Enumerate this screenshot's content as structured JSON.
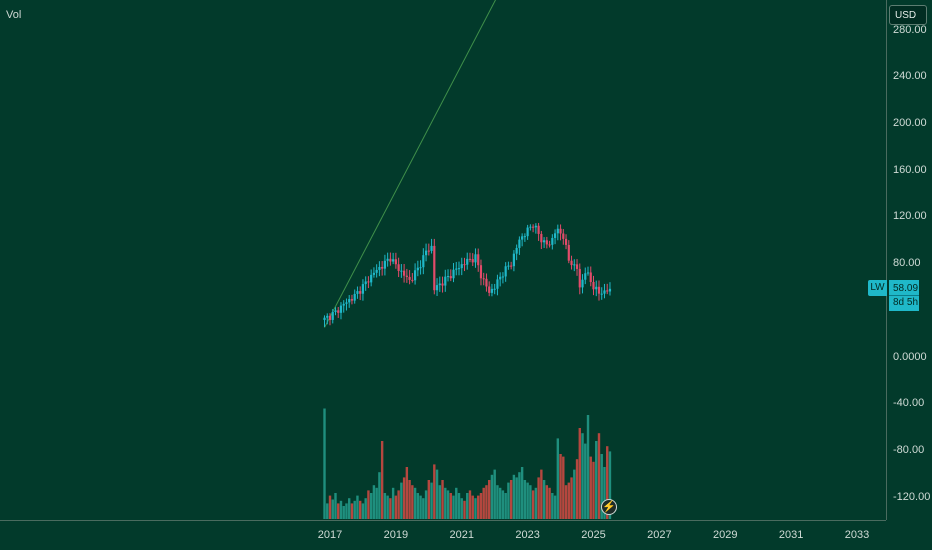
{
  "legend": {
    "label": "Vol"
  },
  "currency": "USD",
  "symbol": "LW",
  "last_price": "58.09",
  "countdown": "8d 5h",
  "y_ticks": [
    "280.00",
    "240.00",
    "200.00",
    "160.00",
    "120.00",
    "80.00",
    "0.0000",
    "-40.00",
    "-80.00",
    "-120.00"
  ],
  "x_ticks": [
    "2017",
    "2019",
    "2021",
    "2023",
    "2025",
    "2027",
    "2029",
    "2031",
    "2033"
  ],
  "colors": {
    "background": "#023a2b",
    "up": "#1fb8c9",
    "down": "#e24b6a",
    "vol_up": "#1f8f7e",
    "vol_down": "#b5473f",
    "trendline": "#3f8f4a"
  },
  "chart_data": {
    "type": "candlestick",
    "interval": "1M",
    "price_scale": {
      "ylim": [
        -150,
        295
      ]
    },
    "x_range": [
      "2016-09",
      "2033-10"
    ],
    "trendline": {
      "from": [
        "2016-11",
        25
      ],
      "to": [
        "2022-09",
        340
      ]
    },
    "price_series": {
      "name": "LW",
      "anchors": [
        [
          "2016-11",
          32
        ],
        [
          "2017-03",
          38
        ],
        [
          "2017-06",
          45
        ],
        [
          "2017-10",
          52
        ],
        [
          "2018-02",
          63
        ],
        [
          "2018-05",
          72
        ],
        [
          "2018-09",
          80
        ],
        [
          "2018-11",
          85
        ],
        [
          "2019-01",
          78
        ],
        [
          "2019-04",
          70
        ],
        [
          "2019-06",
          65
        ],
        [
          "2019-09",
          75
        ],
        [
          "2019-12",
          90
        ],
        [
          "2020-02",
          94
        ],
        [
          "2020-03",
          58
        ],
        [
          "2020-05",
          62
        ],
        [
          "2020-08",
          68
        ],
        [
          "2020-11",
          75
        ],
        [
          "2021-03",
          82
        ],
        [
          "2021-06",
          85
        ],
        [
          "2021-08",
          70
        ],
        [
          "2021-11",
          55
        ],
        [
          "2022-01",
          60
        ],
        [
          "2022-04",
          72
        ],
        [
          "2022-07",
          80
        ],
        [
          "2022-10",
          100
        ],
        [
          "2023-01",
          108
        ],
        [
          "2023-03",
          114
        ],
        [
          "2023-06",
          100
        ],
        [
          "2023-09",
          95
        ],
        [
          "2023-11",
          108
        ],
        [
          "2024-02",
          104
        ],
        [
          "2024-04",
          82
        ],
        [
          "2024-07",
          76
        ],
        [
          "2024-08",
          58
        ],
        [
          "2024-10",
          74
        ],
        [
          "2024-12",
          64
        ],
        [
          "2025-03",
          54
        ],
        [
          "2025-07",
          58
        ]
      ],
      "last": 58.09
    },
    "volume_series": {
      "name": "Vol",
      "note": "relative monthly bar heights, 0-100",
      "values": [
        85,
        12,
        18,
        15,
        20,
        12,
        14,
        10,
        12,
        16,
        12,
        14,
        18,
        14,
        12,
        16,
        22,
        20,
        26,
        24,
        36,
        60,
        20,
        18,
        16,
        24,
        18,
        22,
        28,
        32,
        40,
        30,
        26,
        24,
        20,
        18,
        16,
        22,
        30,
        28,
        42,
        38,
        26,
        30,
        24,
        22,
        20,
        18,
        24,
        20,
        16,
        14,
        20,
        22,
        18,
        16,
        18,
        20,
        24,
        26,
        30,
        34,
        38,
        26,
        24,
        22,
        20,
        28,
        30,
        34,
        32,
        36,
        40,
        30,
        28,
        26,
        22,
        24,
        32,
        38,
        30,
        26,
        24,
        20,
        18,
        62,
        50,
        48,
        26,
        28,
        32,
        38,
        46,
        70,
        66,
        58,
        80,
        48,
        44,
        60,
        66,
        50,
        40,
        56,
        52,
        46,
        34,
        30,
        28,
        44
      ]
    }
  }
}
